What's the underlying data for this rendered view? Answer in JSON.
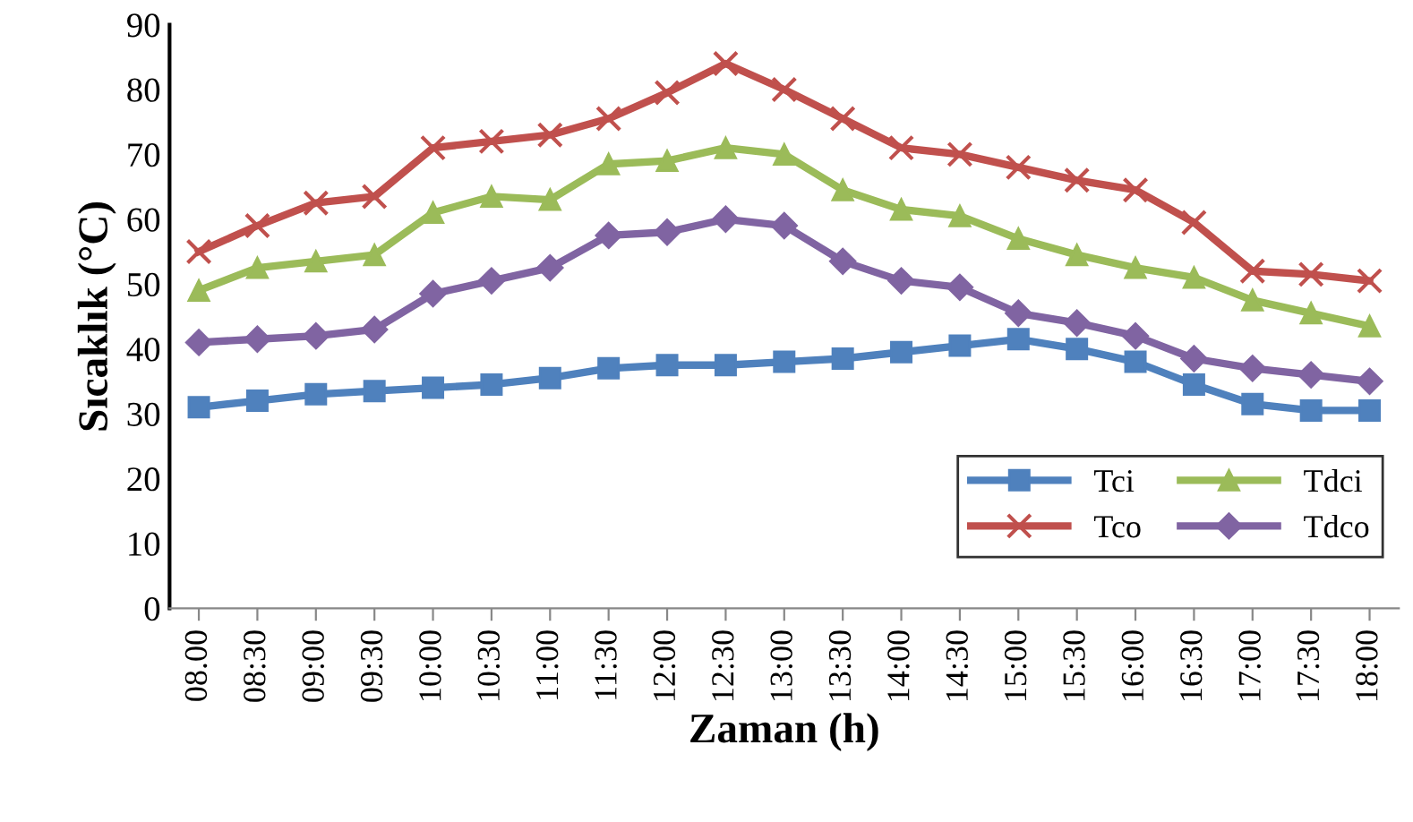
{
  "chart_data": {
    "type": "line",
    "xlabel": "Zaman (h)",
    "ylabel": "Sıcaklık (°C)",
    "categories": [
      "08.00",
      "08:30",
      "09:00",
      "09:30",
      "10:00",
      "10:30",
      "11:00",
      "11:30",
      "12:00",
      "12:30",
      "13:00",
      "13:30",
      "14:00",
      "14:30",
      "15:00",
      "15:30",
      "16:00",
      "16:30",
      "17:00",
      "17:30",
      "18:00"
    ],
    "series": [
      {
        "name": "Tci",
        "color": "#4f81bd",
        "marker": "square",
        "values": [
          31,
          32,
          33,
          33.5,
          34,
          34.5,
          35.5,
          37,
          37.5,
          37.5,
          38,
          38.5,
          39.5,
          40.5,
          41.5,
          40,
          38,
          34.5,
          31.5,
          30.5,
          30.5
        ]
      },
      {
        "name": "Tco",
        "color": "#c0504d",
        "marker": "cross",
        "values": [
          55,
          59,
          62.5,
          63.5,
          71,
          72,
          73,
          75.5,
          79.5,
          84,
          80,
          75.5,
          71,
          70,
          68,
          66,
          64.5,
          59.5,
          52,
          51.5,
          50.5
        ]
      },
      {
        "name": "Tdci",
        "color": "#9bbb59",
        "marker": "triangle",
        "values": [
          49,
          52.5,
          53.5,
          54.5,
          61,
          63.5,
          63,
          68.5,
          69,
          71,
          70,
          64.5,
          61.5,
          60.5,
          57,
          54.5,
          52.5,
          51,
          47.5,
          45.5,
          43.5
        ]
      },
      {
        "name": "Tdco",
        "color": "#8064a2",
        "marker": "diamond",
        "values": [
          41,
          41.5,
          42,
          43,
          48.5,
          50.5,
          52.5,
          57.5,
          58,
          60,
          59,
          53.5,
          50.5,
          49.5,
          45.5,
          44,
          42,
          38.5,
          37,
          36,
          35
        ]
      }
    ],
    "ylim": [
      0,
      90
    ],
    "yticks": [
      0,
      10,
      20,
      30,
      40,
      50,
      60,
      70,
      80,
      90
    ],
    "grid": false,
    "legend": "bottom right"
  }
}
